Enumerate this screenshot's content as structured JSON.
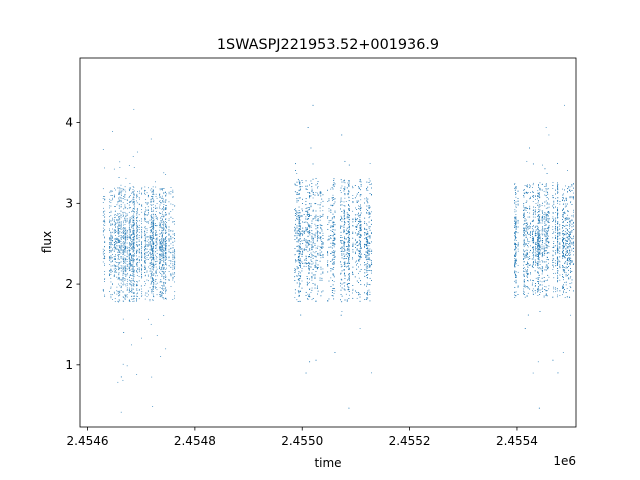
{
  "chart_data": {
    "type": "scatter",
    "title": "1SWASPJ221953.52+001936.9",
    "xlabel": "time",
    "ylabel": "flux",
    "x_offset_label": "1e6",
    "xlim": [
      2454586,
      2455510
    ],
    "ylim": [
      0.23,
      4.8
    ],
    "x_ticks": [
      2454600,
      2454700,
      2454800,
      2454900,
      2455000,
      2455100,
      2455200,
      2455300,
      2455400,
      2455500
    ],
    "x_tick_labels": [
      "2.4546",
      "",
      "2.4548",
      "",
      "2.4550",
      "",
      "2.4552",
      "",
      "2.4554",
      ""
    ],
    "x_ticks_shown": [
      2454600,
      2454800,
      2455000,
      2455200,
      2455400
    ],
    "x_tick_labels_shown": [
      "2.4546",
      "2.4548",
      "2.4550",
      "2.4552",
      "2.4554"
    ],
    "y_ticks": [
      1,
      2,
      3,
      4
    ],
    "y_tick_labels": [
      "1",
      "2",
      "3",
      "4"
    ],
    "grid": false,
    "marker_color": "#1f77b4",
    "series": [
      {
        "segments": [
          {
            "x_range": [
              2454628,
              2454762
            ],
            "median": 2.5,
            "spread": 0.42,
            "n": 2600
          },
          {
            "x_range": [
              2454985,
              2455130
            ],
            "median": 2.55,
            "spread": 0.45,
            "n": 2800
          },
          {
            "x_range": [
              2455392,
              2455505
            ],
            "median": 2.55,
            "spread": 0.42,
            "n": 2300
          }
        ]
      }
    ]
  }
}
